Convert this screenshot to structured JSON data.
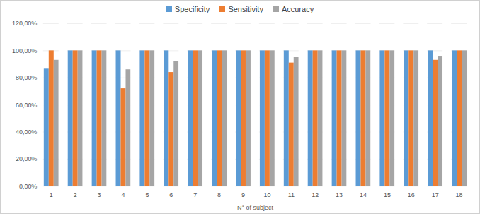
{
  "chart_data": {
    "type": "bar",
    "x_label": "N° of subject",
    "categories": [
      "1",
      "2",
      "3",
      "4",
      "5",
      "6",
      "7",
      "8",
      "9",
      "10",
      "11",
      "12",
      "13",
      "14",
      "15",
      "16",
      "17",
      "18"
    ],
    "series": [
      {
        "name": "Specificity",
        "color": "#5b9bd5",
        "values": [
          87,
          100,
          100,
          100,
          100,
          100,
          100,
          100,
          100,
          100,
          100,
          100,
          100,
          100,
          100,
          100,
          100,
          100
        ]
      },
      {
        "name": "Sensitivity",
        "color": "#ed7d31",
        "values": [
          100,
          100,
          100,
          72,
          100,
          84,
          100,
          100,
          100,
          100,
          91,
          100,
          100,
          100,
          100,
          100,
          93,
          100
        ]
      },
      {
        "name": "Accuracy",
        "color": "#a5a5a5",
        "values": [
          93,
          100,
          100,
          86,
          100,
          92,
          100,
          100,
          100,
          100,
          95,
          100,
          100,
          100,
          100,
          100,
          96,
          100
        ]
      }
    ],
    "ylim": [
      0,
      120
    ],
    "yticks": [
      {
        "value": 0,
        "label": "0,00%"
      },
      {
        "value": 20,
        "label": "20,00%"
      },
      {
        "value": 40,
        "label": "40,00%"
      },
      {
        "value": 60,
        "label": "60,00%"
      },
      {
        "value": 80,
        "label": "80,00%"
      },
      {
        "value": 100,
        "label": "100,00%"
      },
      {
        "value": 120,
        "label": "120,00%"
      }
    ],
    "grid": true,
    "legend": "top"
  }
}
